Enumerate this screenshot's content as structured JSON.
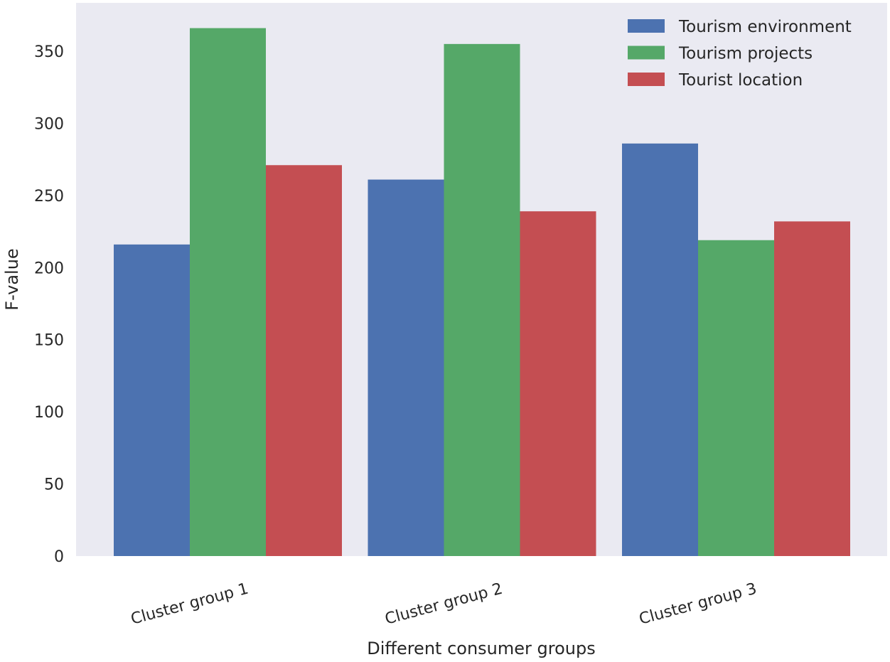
{
  "chart_data": {
    "type": "bar",
    "title": "",
    "xlabel": "Different consumer groups",
    "ylabel": "F-value",
    "categories": [
      "Cluster group 1",
      "Cluster group 2",
      "Cluster group 3"
    ],
    "series": [
      {
        "name": "Tourism environment",
        "color": "#4c72b0",
        "values": [
          216,
          261,
          286
        ]
      },
      {
        "name": "Tourism projects",
        "color": "#55a868",
        "values": [
          366,
          355,
          219
        ]
      },
      {
        "name": "Tourist location",
        "color": "#c44e52",
        "values": [
          271,
          239,
          232
        ]
      }
    ],
    "ylim": [
      0,
      384
    ],
    "yticks": [
      0,
      50,
      100,
      150,
      200,
      250,
      300,
      350
    ],
    "grid": false,
    "legend": "top-right",
    "background": "#eaeaf2",
    "xtick_rotation": -15
  }
}
